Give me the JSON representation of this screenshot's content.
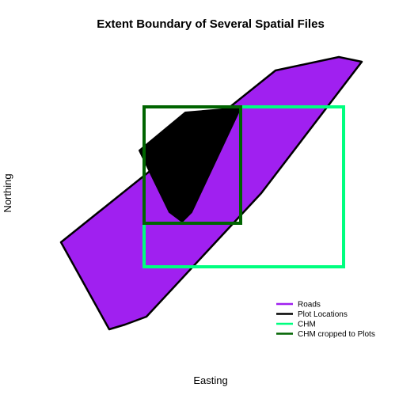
{
  "chart_data": {
    "type": "map",
    "title": "Extent Boundary of Several Spatial Files",
    "xlabel": "Easting",
    "ylabel": "Northing",
    "legend_position": "bottom-right",
    "axes_visible": false,
    "grid": false,
    "series": [
      {
        "name": "Roads",
        "kind": "polygon",
        "fill": "#a020f0",
        "stroke": "#000000",
        "points": [
          [
            138,
            416
          ],
          [
            77,
            306
          ],
          [
            348,
            89
          ],
          [
            428,
            72
          ],
          [
            457,
            78
          ],
          [
            330,
            244
          ],
          [
            185,
            400
          ],
          [
            158,
            410
          ]
        ]
      },
      {
        "name": "Plot Locations",
        "kind": "polygon",
        "fill": "#000000",
        "stroke": "#000000",
        "points": [
          [
            176,
            190
          ],
          [
            234,
            142
          ],
          [
            304,
            136
          ],
          [
            242,
            268
          ],
          [
            230,
            280
          ],
          [
            214,
            268
          ]
        ]
      },
      {
        "name": "CHM",
        "kind": "rect",
        "stroke": "#00ff7f",
        "extent": [
          182,
          135,
          434,
          337
        ]
      },
      {
        "name": "CHM cropped to Plots",
        "kind": "rect",
        "stroke": "#006400",
        "extent": [
          182,
          135,
          304,
          282
        ]
      }
    ],
    "legend": [
      {
        "label": "Roads",
        "color": "#a020f0"
      },
      {
        "label": "Plot Locations",
        "color": "#000000"
      },
      {
        "label": "CHM",
        "color": "#00ff7f"
      },
      {
        "label": "CHM cropped to Plots",
        "color": "#006400"
      }
    ]
  }
}
